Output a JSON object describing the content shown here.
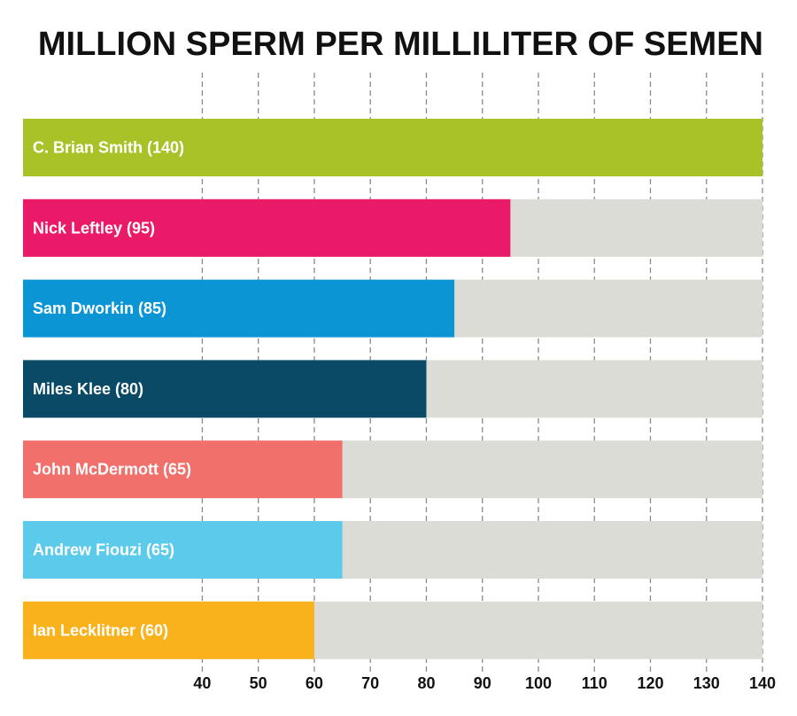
{
  "chart_data": {
    "type": "bar",
    "orientation": "horizontal",
    "title": "MILLION SPERM PER MILLILITER OF SEMEN",
    "xlabel": "",
    "ylabel": "",
    "xlim": [
      8,
      140
    ],
    "x_ticks": [
      40,
      50,
      60,
      70,
      80,
      90,
      100,
      110,
      120,
      130,
      140
    ],
    "grid": "vertical dashed",
    "track_color": "#dcdcd6",
    "bars": [
      {
        "label": "C. Brian Smith (140)",
        "value": 140,
        "color": "#a9c228"
      },
      {
        "label": "Nick Leftley (95)",
        "value": 95,
        "color": "#eb1a68"
      },
      {
        "label": "Sam Dworkin (85)",
        "value": 85,
        "color": "#0b95d4"
      },
      {
        "label": "Miles Klee (80)",
        "value": 80,
        "color": "#0a4a66"
      },
      {
        "label": "John McDermott (65)",
        "value": 65,
        "color": "#f2706c"
      },
      {
        "label": "Andrew Fiouzi (65)",
        "value": 65,
        "color": "#5ccaea"
      },
      {
        "label": "Ian Lecklitner (60)",
        "value": 60,
        "color": "#f9b21c"
      }
    ]
  }
}
